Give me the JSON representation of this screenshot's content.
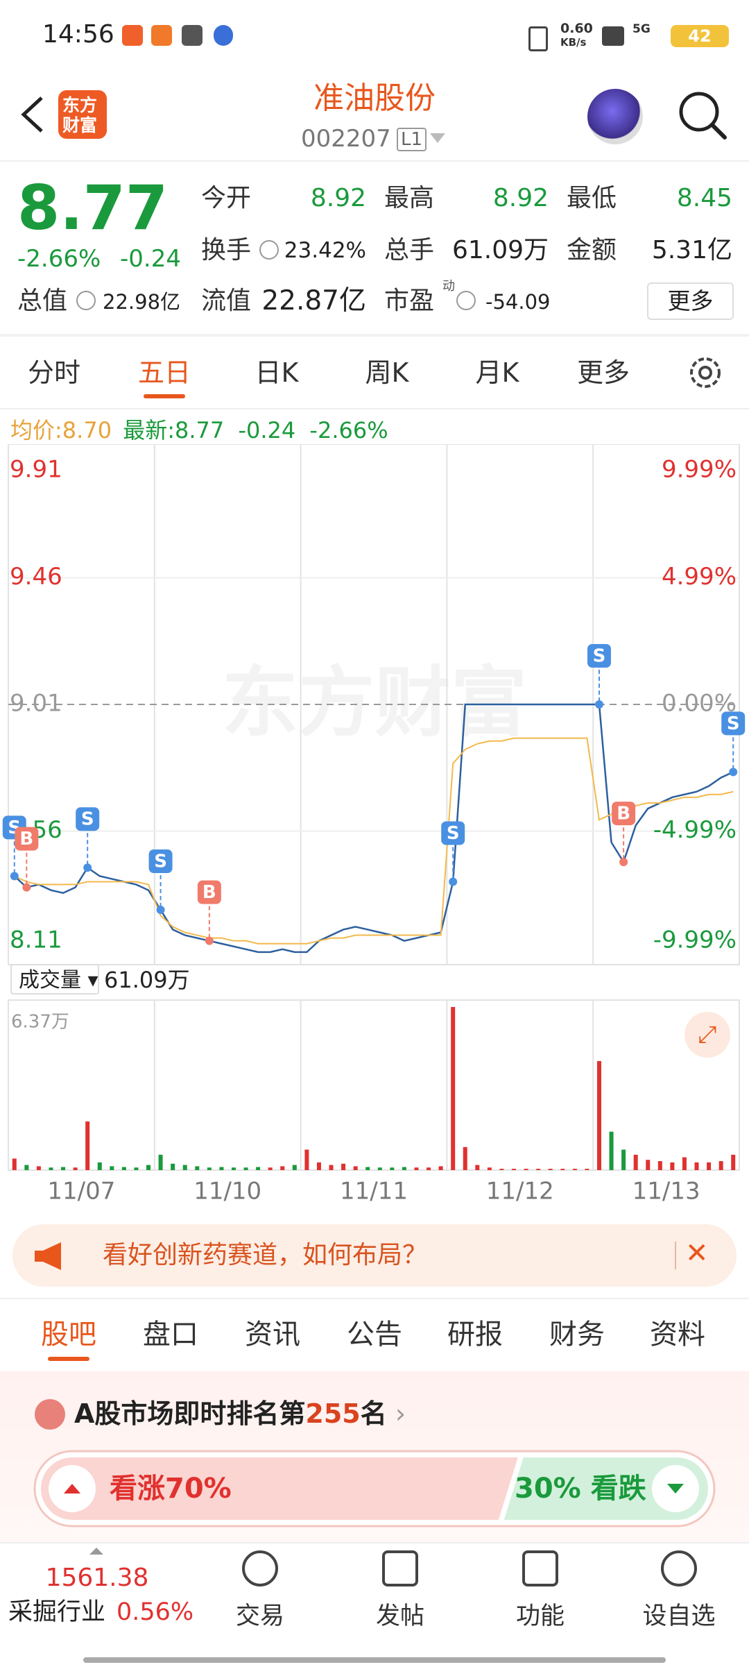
{
  "status_bar": {
    "time": "14:56",
    "net_speed": "0.60",
    "net_unit": "KB/s",
    "signal": "5G",
    "battery": "42"
  },
  "header": {
    "logo": [
      "东方",
      "财富"
    ],
    "title": "准油股份",
    "code": "002207",
    "level": "L1"
  },
  "quote": {
    "price": "8.77",
    "change_pct": "-2.66%",
    "change": "-0.24",
    "row1": [
      {
        "label": "今开",
        "value": "8.92"
      },
      {
        "label": "最高",
        "value": "8.92"
      },
      {
        "label": "最低",
        "value": "8.45"
      }
    ],
    "row2": [
      {
        "label": "换手",
        "value": "23.42%"
      },
      {
        "label": "总手",
        "value": "61.09万"
      },
      {
        "label": "金额",
        "value": "5.31亿"
      }
    ],
    "row3": [
      {
        "label": "总值",
        "value": "22.98亿"
      },
      {
        "label": "流值",
        "value": "22.87亿"
      },
      {
        "label": "市盈",
        "superscript": "动",
        "value": "-54.09"
      }
    ],
    "more": "更多"
  },
  "period_tabs": {
    "items": [
      "分时",
      "五日",
      "日K",
      "周K",
      "月K",
      "更多"
    ],
    "active": 1
  },
  "info_line": {
    "avg_label": "均价:",
    "avg": "8.70",
    "last_label": "最新:",
    "last": "8.77",
    "change": "-0.24",
    "change_pct": "-2.66%"
  },
  "chart": {
    "type": "line",
    "ylim": [
      8.11,
      9.91
    ],
    "yticks": [
      9.91,
      9.46,
      9.01,
      8.56,
      8.11
    ],
    "y2lim": [
      -9.99,
      9.99
    ],
    "y2ticks": [
      {
        "value": 9.99,
        "label": "9.99%"
      },
      {
        "value": 4.99,
        "label": "4.99%"
      },
      {
        "value": 0,
        "label": "0.00%"
      },
      {
        "value": -4.99,
        "label": "-4.99%"
      },
      {
        "value": -9.99,
        "label": "-9.99%"
      }
    ],
    "ref": 9.01,
    "up_color": "#e0312f",
    "down_color": "#1a9a3c",
    "flat_color": "#999999",
    "watermark": "东方财富",
    "days": [
      "11/07",
      "11/10",
      "11/11",
      "11/12",
      "11/13"
    ],
    "series": [
      {
        "name": "价格",
        "color": "#2c5f9e",
        "values": [
          8.4,
          8.36,
          8.37,
          8.35,
          8.34,
          8.36,
          8.43,
          8.4,
          8.39,
          8.38,
          8.37,
          8.35,
          8.28,
          8.21,
          8.19,
          8.18,
          8.17,
          8.16,
          8.15,
          8.14,
          8.13,
          8.13,
          8.14,
          8.13,
          8.13,
          8.17,
          8.19,
          8.21,
          8.22,
          8.21,
          8.2,
          8.19,
          8.17,
          8.18,
          8.19,
          8.2,
          8.38,
          9.01,
          9.01,
          9.01,
          9.01,
          9.01,
          9.01,
          9.01,
          9.01,
          9.01,
          9.01,
          9.01,
          9.01,
          8.52,
          8.45,
          8.58,
          8.64,
          8.66,
          8.68,
          8.69,
          8.7,
          8.72,
          8.75,
          8.77
        ]
      },
      {
        "name": "均价",
        "color": "#f2b94a",
        "values": [
          8.4,
          8.38,
          8.37,
          8.37,
          8.37,
          8.37,
          8.38,
          8.38,
          8.38,
          8.38,
          8.38,
          8.37,
          8.26,
          8.22,
          8.2,
          8.19,
          8.18,
          8.18,
          8.17,
          8.17,
          8.16,
          8.16,
          8.16,
          8.16,
          8.16,
          8.17,
          8.18,
          8.18,
          8.19,
          8.19,
          8.19,
          8.19,
          8.19,
          8.19,
          8.19,
          8.19,
          8.8,
          8.85,
          8.87,
          8.88,
          8.88,
          8.89,
          8.89,
          8.89,
          8.89,
          8.89,
          8.89,
          8.89,
          8.6,
          8.62,
          8.64,
          8.65,
          8.66,
          8.66,
          8.67,
          8.68,
          8.68,
          8.69,
          8.69,
          8.7
        ]
      }
    ],
    "trade_marks": [
      {
        "label": "S",
        "x": 0,
        "color": "#4a90e2"
      },
      {
        "label": "B",
        "x": 1,
        "color": "#f07b6b"
      },
      {
        "label": "S",
        "x": 6,
        "color": "#4a90e2"
      },
      {
        "label": "S",
        "x": 12,
        "color": "#4a90e2"
      },
      {
        "label": "B",
        "x": 16,
        "color": "#f07b6b"
      },
      {
        "label": "S",
        "x": 36,
        "color": "#4a90e2"
      },
      {
        "label": "S",
        "x": 48,
        "color": "#4a90e2"
      },
      {
        "label": "B",
        "x": 50,
        "color": "#f07b6b"
      },
      {
        "label": "S",
        "x": 59,
        "color": "#4a90e2"
      }
    ]
  },
  "volume": {
    "label": "成交量",
    "total": "61.09万",
    "ylim": [
      0,
      6.37
    ],
    "yticks": [
      {
        "value": 6.37,
        "label": "6.37万"
      }
    ],
    "values": [
      0.45,
      0.2,
      0.15,
      0.1,
      0.12,
      0.1,
      1.9,
      0.3,
      0.15,
      0.12,
      0.1,
      0.2,
      0.6,
      0.25,
      0.2,
      0.15,
      0.1,
      0.12,
      0.1,
      0.1,
      0.12,
      0.1,
      0.15,
      0.2,
      0.8,
      0.3,
      0.2,
      0.25,
      0.15,
      0.12,
      0.1,
      0.1,
      0.12,
      0.1,
      0.1,
      0.15,
      6.37,
      0.9,
      0.2,
      0.1,
      0.05,
      0.05,
      0.05,
      0.05,
      0.05,
      0.05,
      0.05,
      0.05,
      4.26,
      1.5,
      0.8,
      0.6,
      0.4,
      0.35,
      0.3,
      0.5,
      0.3,
      0.3,
      0.35,
      0.6
    ]
  },
  "banner": {
    "text": "看好创新药赛道，如何布局？"
  },
  "content_tabs": {
    "items": [
      "股吧",
      "盘口",
      "资讯",
      "公告",
      "研报",
      "财务",
      "资料"
    ],
    "active": 0
  },
  "ranking": {
    "prefix": "A股市场即时排名第",
    "rank": "255",
    "suffix": "名"
  },
  "vote": {
    "bull": {
      "name": "看涨",
      "value": 70,
      "label": "70%"
    },
    "bear": {
      "name": "看跌",
      "value": 30,
      "label": "30%"
    }
  },
  "bottom_nav": {
    "index": "1561.38",
    "sector": "采掘行业",
    "sector_change": "0.56%",
    "items": [
      "交易",
      "发帖",
      "功能",
      "设自选"
    ]
  }
}
